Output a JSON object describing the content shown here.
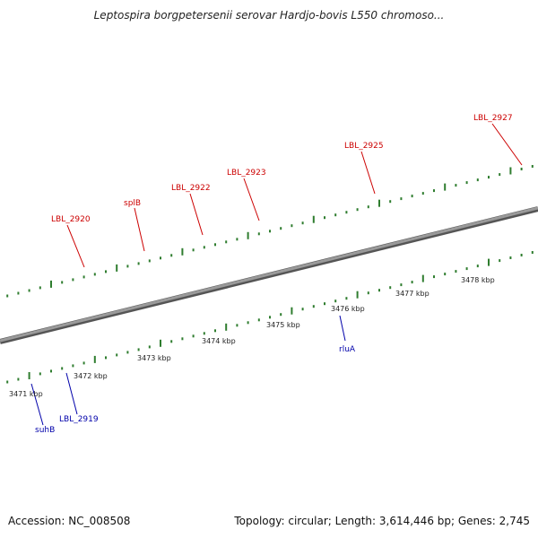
{
  "title": "Leptospira borgpetersenii serovar Hardjo-bovis L550 chromoso...",
  "footer": {
    "accession": "Accession: NC_008508",
    "topology": "Topology: circular; Length: 3,614,446 bp; Genes: 2,745"
  },
  "colors": {
    "forward_labels": "#cc0000",
    "reverse_labels": "#0000aa",
    "tick_marks": "#2f7d2f",
    "backbone": "#7a7a7a"
  },
  "scale_labels": [
    "3471 kbp",
    "3472 kbp",
    "3473 kbp",
    "3474 kbp",
    "3475 kbp",
    "3476 kbp",
    "3477 kbp",
    "3478 kbp"
  ],
  "forward_gene_labels": [
    "LBL_2920",
    "splB",
    "LBL_2922",
    "LBL_2923",
    "LBL_2925",
    "LBL_2927"
  ],
  "reverse_gene_labels": [
    "suhB",
    "LBL_2919",
    "rluA"
  ]
}
